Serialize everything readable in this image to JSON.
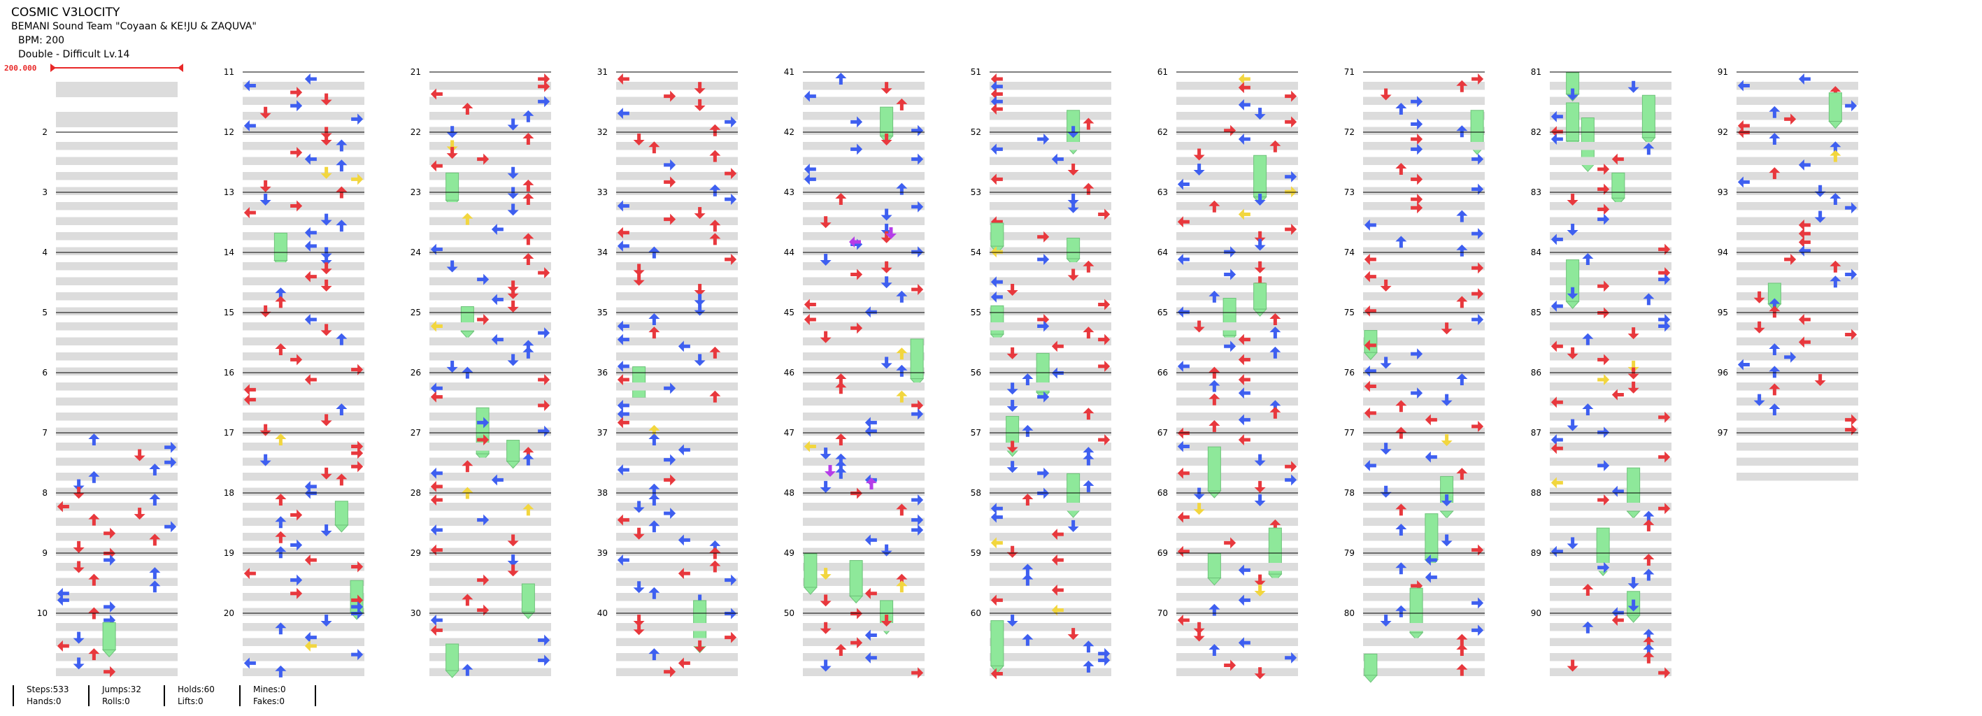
{
  "header": {
    "title": "COSMIC V3LOCITY",
    "artist": "BEMANI Sound Team \"Coyaan & KE!JU & ZAQUVA\"",
    "bpm_line": "BPM: 200",
    "chart_line": "Double - Difficult  Lv.14"
  },
  "bpm_marker": "200.000",
  "colors": {
    "red": "#e8383d",
    "blue": "#3e5ff0",
    "yellow": "#f2d63e",
    "purple": "#b53de8",
    "green": "#8ee89a",
    "shade": "#dcdcdc",
    "bpm": "#e82828"
  },
  "stats": [
    {
      "a": "Steps:533",
      "b": "Hands:0"
    },
    {
      "a": "Jumps:32",
      "b": "Rolls:0"
    },
    {
      "a": "Holds:60",
      "b": "Lifts:0"
    },
    {
      "a": "Mines:0",
      "b": "Fakes:0"
    }
  ],
  "chart_data": {
    "type": "table",
    "measure_count": 97,
    "measures_per_column": 10,
    "columns": 10,
    "measure_labels": [
      "2",
      "3",
      "4",
      "5",
      "6",
      "7",
      "8",
      "9",
      "10",
      "11",
      "12",
      "13",
      "14",
      "15",
      "16",
      "17",
      "18",
      "19",
      "20",
      "21",
      "22",
      "23",
      "24",
      "25",
      "26",
      "27",
      "28",
      "29",
      "30",
      "31",
      "32",
      "33",
      "34",
      "35",
      "36",
      "37",
      "38",
      "39",
      "40",
      "41",
      "42",
      "43",
      "44",
      "45",
      "46",
      "47",
      "48",
      "49",
      "50",
      "51",
      "52",
      "53",
      "54",
      "55",
      "56",
      "57",
      "58",
      "59",
      "60",
      "61",
      "62",
      "63",
      "64",
      "65",
      "66",
      "67",
      "68",
      "69",
      "70",
      "71",
      "72",
      "73",
      "74",
      "75",
      "76",
      "77",
      "78",
      "79",
      "80",
      "81",
      "82",
      "83",
      "84",
      "85",
      "86",
      "87",
      "88",
      "89",
      "90",
      "91",
      "92",
      "93",
      "94",
      "95",
      "96",
      "97"
    ],
    "note_types": [
      "red-arrow",
      "blue-arrow",
      "yellow-arrow",
      "purple-arrow",
      "green-hold"
    ]
  }
}
